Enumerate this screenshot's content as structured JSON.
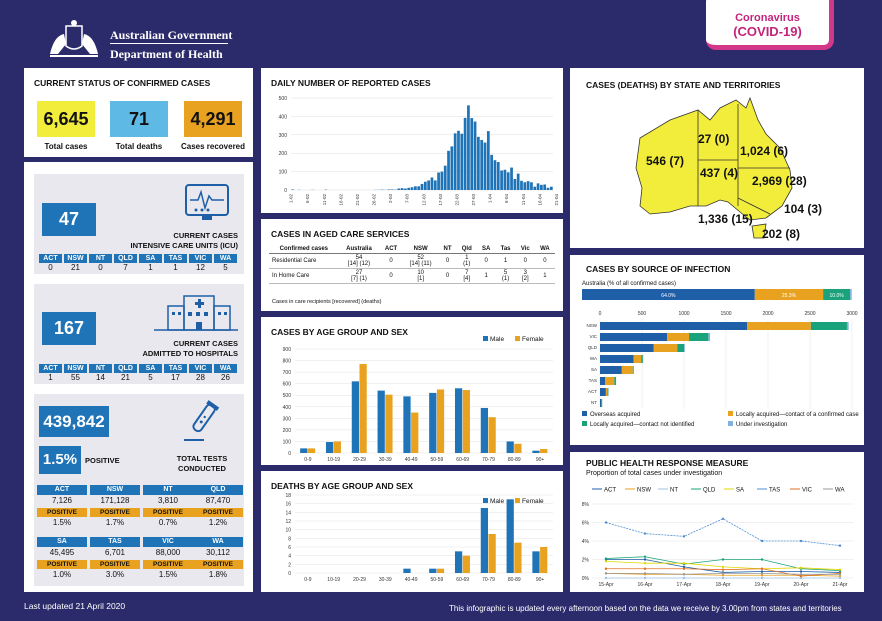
{
  "header": {
    "gov_line1": "Australian Government",
    "gov_line2": "Department of Health",
    "badge_line1": "Coronavirus",
    "badge_line2": "(COVID-19)"
  },
  "status": {
    "title": "CURRENT STATUS OF CONFIRMED CASES",
    "total_cases": "6,645",
    "total_cases_label": "Total cases",
    "total_deaths": "71",
    "total_deaths_label": "Total deaths",
    "recovered": "4,291",
    "recovered_label": "Cases recovered"
  },
  "icu": {
    "value": "47",
    "label1": "CURRENT CASES",
    "label2": "INTENSIVE CARE UNITS (ICU)",
    "states": [
      "ACT",
      "NSW",
      "NT",
      "QLD",
      "SA",
      "TAS",
      "VIC",
      "WA"
    ],
    "values": [
      "0",
      "21",
      "0",
      "7",
      "1",
      "1",
      "12",
      "5"
    ]
  },
  "hospital": {
    "value": "167",
    "label1": "CURRENT CASES",
    "label2": "ADMITTED TO HOSPITALS",
    "states": [
      "ACT",
      "NSW",
      "NT",
      "QLD",
      "SA",
      "TAS",
      "VIC",
      "WA"
    ],
    "values": [
      "1",
      "55",
      "14",
      "21",
      "5",
      "17",
      "28",
      "26"
    ]
  },
  "tests": {
    "total": "439,842",
    "positive_pct": "1.5%",
    "positive_label": "POSITIVE",
    "label1": "TOTAL TESTS",
    "label2": "CONDUCTED",
    "positive_tag": "POSITIVE",
    "states": [
      {
        "name": "ACT",
        "tests": "7,126",
        "pct": "1.5%"
      },
      {
        "name": "NSW",
        "tests": "171,128",
        "pct": "1.7%"
      },
      {
        "name": "NT",
        "tests": "3,810",
        "pct": "0.7%"
      },
      {
        "name": "QLD",
        "tests": "87,470",
        "pct": "1.2%"
      },
      {
        "name": "SA",
        "tests": "45,495",
        "pct": "1.0%"
      },
      {
        "name": "TAS",
        "tests": "6,701",
        "pct": "3.0%"
      },
      {
        "name": "VIC",
        "tests": "88,000",
        "pct": "1.5%"
      },
      {
        "name": "WA",
        "tests": "30,112",
        "pct": "1.8%"
      }
    ]
  },
  "footer": {
    "updated": "Last updated 21 April 2020",
    "note": "This infographic is updated every afternoon based on the data we receive by 3.00pm from states and territories"
  },
  "aged_care": {
    "title": "CASES IN AGED CARE SERVICES",
    "headers": [
      "Confirmed cases",
      "Australia",
      "ACT",
      "NSW",
      "NT",
      "Qld",
      "SA",
      "Tas",
      "Vic",
      "WA"
    ],
    "rows": [
      {
        "label": "Residential Care",
        "cells": [
          "54\n[14] (12)",
          "0",
          "52\n[14] (11)",
          "0",
          "1\n(1)",
          "0",
          "1",
          "0",
          "0"
        ]
      },
      {
        "label": "In Home Care",
        "cells": [
          "27\n[7] (1)",
          "0",
          "10\n[1]",
          "0",
          "7\n[4]",
          "1",
          "5\n(1)",
          "3\n[2]",
          "1"
        ]
      }
    ],
    "note": "Cases in care recipients [recovered] (deaths)"
  },
  "states_map": {
    "title": "CASES (DEATHS) BY STATE AND TERRITORIES",
    "labels": [
      {
        "state": "WA",
        "text": "546 (7)"
      },
      {
        "state": "NT",
        "text": "27 (0)"
      },
      {
        "state": "QLD",
        "text": "1,024 (6)"
      },
      {
        "state": "SA",
        "text": "437 (4)"
      },
      {
        "state": "NSW",
        "text": "2,969 (28)"
      },
      {
        "state": "ACT",
        "text": "104 (3)"
      },
      {
        "state": "VIC",
        "text": "1,336 (15)"
      },
      {
        "state": "TAS",
        "text": "202 (8)"
      }
    ],
    "fill_color": "#f2ec3a"
  },
  "source": {
    "title": "CASES BY SOURCE OF INFECTION",
    "aus_label": "Australia (% of all confirmed cases)",
    "legend": [
      {
        "name": "Overseas acquired",
        "color": "#1f5fa8"
      },
      {
        "name": "Locally acquired—contact of a confirmed case",
        "color": "#e8a21f"
      },
      {
        "name": "Locally acquired—contact not identified",
        "color": "#1aa37a"
      },
      {
        "name": "Under investigation",
        "color": "#7fb2e0"
      }
    ]
  },
  "response": {
    "title": "PUBLIC HEALTH RESPONSE MEASURE",
    "subtitle": "Proportion of total cases under investigation"
  },
  "chart_data": [
    {
      "type": "bar",
      "title": "DAILY NUMBER OF REPORTED CASES",
      "ylim": [
        0,
        500
      ],
      "yticks": [
        "0",
        "100",
        "200",
        "300",
        "400",
        "500"
      ],
      "xticklabels": [
        "1-02",
        "6-02",
        "11-02",
        "16-02",
        "21-02",
        "26-02",
        "2-03",
        "7-03",
        "12-03",
        "17-03",
        "22-03",
        "27-03",
        "1-04",
        "6-04",
        "11-04",
        "16-04",
        "21-04"
      ],
      "color": "#1f73b7",
      "values": [
        3,
        0,
        1,
        0,
        0,
        0,
        1,
        0,
        0,
        0,
        2,
        0,
        0,
        0,
        0,
        0,
        0,
        0,
        0,
        0,
        0,
        0,
        0,
        0,
        0,
        1,
        1,
        2,
        1,
        3,
        3,
        2,
        8,
        10,
        8,
        12,
        15,
        20,
        20,
        33,
        45,
        52,
        68,
        52,
        95,
        100,
        132,
        213,
        237,
        308,
        322,
        306,
        392,
        460,
        391,
        372,
        289,
        272,
        258,
        320,
        191,
        162,
        152,
        106,
        110,
        96,
        122,
        60,
        89,
        50,
        42,
        48,
        42,
        18,
        36,
        28,
        30,
        12,
        18
      ]
    },
    {
      "type": "bar",
      "title": "CASES BY AGE GROUP AND SEX",
      "categories": [
        "0-9",
        "10-19",
        "20-29",
        "30-39",
        "40-49",
        "50-59",
        "60-69",
        "70-79",
        "80-89",
        "90+"
      ],
      "ylim": [
        0,
        900
      ],
      "yticks": [
        "0",
        "100",
        "200",
        "300",
        "400",
        "500",
        "600",
        "700",
        "800",
        "900"
      ],
      "series": [
        {
          "name": "Male",
          "color": "#1f73b7",
          "values": [
            40,
            95,
            620,
            540,
            490,
            520,
            560,
            390,
            100,
            20
          ]
        },
        {
          "name": "Female",
          "color": "#e8a21f",
          "values": [
            40,
            100,
            770,
            505,
            350,
            550,
            545,
            310,
            80,
            35
          ]
        }
      ]
    },
    {
      "type": "bar",
      "title": "DEATHS BY AGE GROUP AND SEX",
      "categories": [
        "0-9",
        "10-19",
        "20-29",
        "30-39",
        "40-49",
        "50-59",
        "60-69",
        "70-79",
        "80-89",
        "90+"
      ],
      "ylim": [
        0,
        18
      ],
      "yticks": [
        "0",
        "2",
        "4",
        "6",
        "8",
        "10",
        "12",
        "14",
        "16",
        "18"
      ],
      "series": [
        {
          "name": "Male",
          "color": "#1f73b7",
          "values": [
            0,
            0,
            0,
            0,
            1,
            1,
            5,
            15,
            17,
            5
          ]
        },
        {
          "name": "Female",
          "color": "#e8a21f",
          "values": [
            0,
            0,
            0,
            0,
            0,
            1,
            4,
            9,
            7,
            6
          ]
        }
      ]
    },
    {
      "type": "bar",
      "title": "CASES BY SOURCE OF INFECTION",
      "subtitle": "Australia (% of all confirmed cases)",
      "australia_pct": [
        {
          "value": 64.0,
          "label": "64.0%"
        },
        {
          "value": 25.3,
          "label": "25.3%"
        },
        {
          "value": 10.0,
          "label": "10.0%"
        },
        {
          "value": 0.6,
          "label": "0.6%"
        }
      ],
      "categories": [
        "NSW",
        "VIC",
        "QLD",
        "WA",
        "SA",
        "TAS",
        "ACT",
        "NT"
      ],
      "xlim": [
        0,
        3000
      ],
      "xticks": [
        "0",
        "500",
        "1000",
        "1500",
        "2000",
        "2500",
        "3000"
      ],
      "series": [
        {
          "name": "Overseas acquired",
          "color": "#1f5fa8",
          "values": [
            1750,
            800,
            640,
            400,
            260,
            60,
            70,
            20
          ]
        },
        {
          "name": "Locally acquired—contact of a confirmed case",
          "color": "#e8a21f",
          "values": [
            760,
            260,
            280,
            90,
            130,
            110,
            20,
            5
          ]
        },
        {
          "name": "Locally acquired—contact not identified",
          "color": "#1aa37a",
          "values": [
            430,
            230,
            80,
            20,
            10,
            20,
            10,
            2
          ]
        },
        {
          "name": "Under investigation",
          "color": "#7fb2e0",
          "values": [
            20,
            20,
            10,
            5,
            2,
            2,
            2,
            0
          ]
        }
      ]
    },
    {
      "type": "line",
      "title": "PUBLIC HEALTH RESPONSE MEASURE",
      "subtitle": "Proportion of total cases under investigation",
      "x": [
        "15-Apr",
        "16-Apr",
        "17-Apr",
        "18-Apr",
        "19-Apr",
        "20-Apr",
        "21-Apr"
      ],
      "ylim": [
        0,
        8
      ],
      "yticks": [
        "0%",
        "2%",
        "4%",
        "6%",
        "8%"
      ],
      "series": [
        {
          "name": "ACT",
          "color": "#1f5fa8",
          "values": [
            2.0,
            2.0,
            1.2,
            0.6,
            0.7,
            0.7,
            0.6
          ]
        },
        {
          "name": "NSW",
          "color": "#e8a21f",
          "values": [
            0.5,
            0.4,
            0.4,
            0.3,
            0.3,
            0.3,
            0.2
          ]
        },
        {
          "name": "NT",
          "color": "#9cc3e6",
          "values": [
            0,
            0,
            0,
            0,
            0,
            0,
            0
          ]
        },
        {
          "name": "QLD",
          "color": "#1aa37a",
          "values": [
            2.1,
            2.3,
            1.5,
            2.0,
            2.0,
            1.0,
            0.8
          ]
        },
        {
          "name": "SA",
          "color": "#e3d800",
          "values": [
            1.8,
            1.6,
            1.6,
            1.2,
            1.0,
            1.1,
            0.9
          ]
        },
        {
          "name": "TAS",
          "color": "#4f8fd0",
          "values": [
            6.0,
            4.8,
            4.5,
            6.4,
            4.0,
            4.0,
            3.5
          ]
        },
        {
          "name": "VIC",
          "color": "#e07020",
          "values": [
            1.0,
            1.0,
            1.0,
            0.9,
            1.0,
            0.2,
            0.5
          ]
        },
        {
          "name": "WA",
          "color": "#999999",
          "values": [
            0.5,
            0.5,
            0.4,
            0.5,
            0.5,
            0.4,
            0.4
          ]
        }
      ]
    }
  ]
}
